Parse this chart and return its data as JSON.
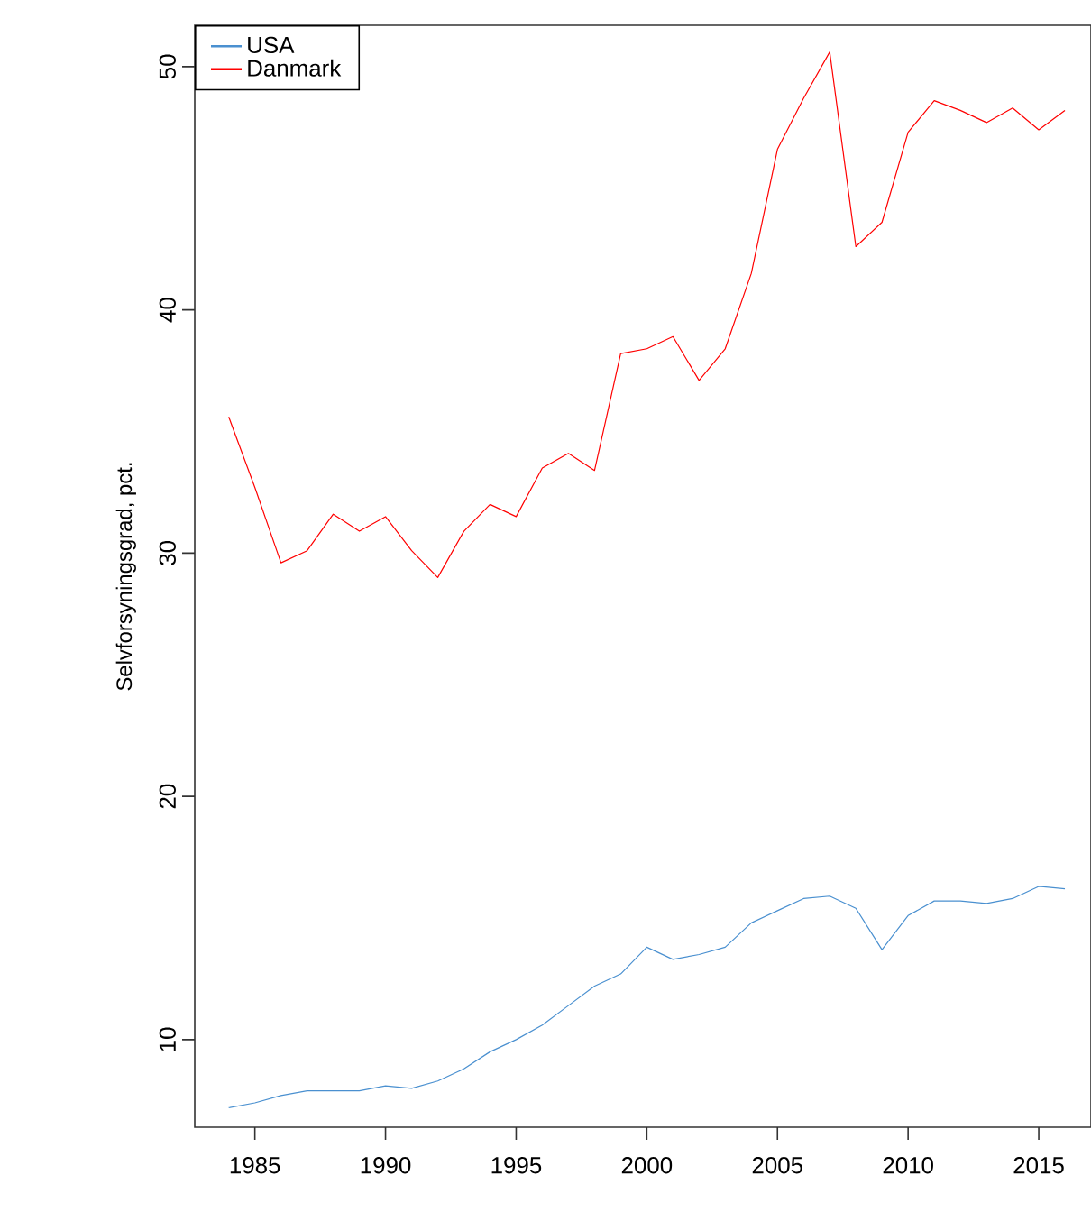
{
  "chart_data": {
    "type": "line",
    "ylabel": "Selvforsyningsgrad, pct.",
    "x": [
      1984,
      1985,
      1986,
      1987,
      1988,
      1989,
      1990,
      1991,
      1992,
      1993,
      1994,
      1995,
      1996,
      1997,
      1998,
      1999,
      2000,
      2001,
      2002,
      2003,
      2004,
      2005,
      2006,
      2007,
      2008,
      2009,
      2010,
      2011,
      2012,
      2013,
      2014,
      2015,
      2016
    ],
    "series": [
      {
        "name": "USA",
        "color": "#4a90d0",
        "values": [
          7.2,
          7.4,
          7.7,
          7.9,
          7.9,
          7.9,
          8.1,
          8.0,
          8.3,
          8.8,
          9.5,
          10.0,
          10.6,
          11.4,
          12.2,
          12.7,
          13.8,
          13.3,
          13.5,
          13.8,
          14.8,
          15.3,
          15.8,
          15.9,
          15.4,
          13.7,
          15.1,
          15.7,
          15.7,
          15.6,
          15.8,
          16.3,
          16.2
        ]
      },
      {
        "name": "Danmark",
        "color": "#ff0000",
        "values": [
          35.6,
          32.7,
          29.6,
          30.1,
          31.6,
          30.9,
          31.5,
          30.1,
          29.0,
          30.9,
          32.0,
          31.5,
          33.5,
          34.1,
          33.4,
          38.2,
          38.4,
          38.9,
          37.1,
          38.4,
          41.5,
          46.6,
          48.7,
          50.6,
          42.6,
          43.6,
          47.3,
          48.6,
          48.2,
          47.7,
          48.3,
          47.4,
          48.2
        ]
      }
    ],
    "xlim": [
      1982.7,
      2017.0
    ],
    "ylim": [
      6.4,
      51.7
    ],
    "xticks": [
      1985,
      1990,
      1995,
      2000,
      2005,
      2010,
      2015
    ],
    "yticks": [
      10,
      20,
      30,
      40,
      50
    ],
    "grid": false,
    "legend": "top left"
  }
}
